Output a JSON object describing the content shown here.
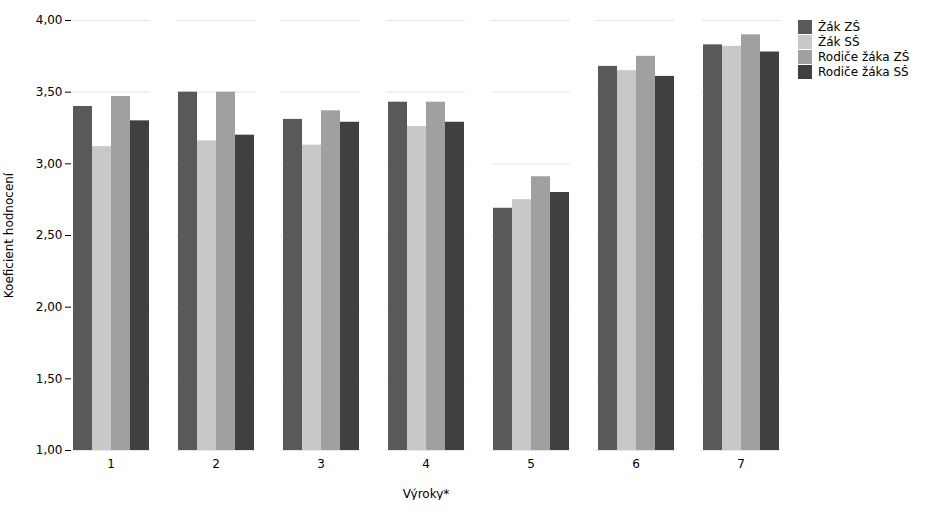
{
  "chart_data": {
    "type": "bar",
    "xlabel": "Výroky*",
    "ylabel": "Koeficient hodnocení",
    "categories": [
      "1",
      "2",
      "3",
      "4",
      "5",
      "6",
      "7"
    ],
    "series": [
      {
        "name": "Žák ZŠ",
        "color": "#595959",
        "values": [
          3.4,
          3.5,
          3.31,
          3.43,
          2.69,
          3.68,
          3.83
        ]
      },
      {
        "name": "Žák SŠ",
        "color": "#c8c8c8",
        "values": [
          3.12,
          3.16,
          3.13,
          3.26,
          2.75,
          3.65,
          3.82
        ]
      },
      {
        "name": "Rodiče žáka ZŠ",
        "color": "#a0a0a0",
        "values": [
          3.47,
          3.5,
          3.37,
          3.43,
          2.91,
          3.75,
          3.9
        ]
      },
      {
        "name": "Rodiče žáka SŠ",
        "color": "#404040",
        "values": [
          3.3,
          3.2,
          3.29,
          3.29,
          2.8,
          3.61,
          3.78
        ]
      }
    ],
    "ylim": [
      1.0,
      4.0
    ],
    "yticks": [
      {
        "value": 1.0,
        "label": "1,00"
      },
      {
        "value": 1.5,
        "label": "1,50"
      },
      {
        "value": 2.0,
        "label": "2,00"
      },
      {
        "value": 2.5,
        "label": "2,50"
      },
      {
        "value": 3.0,
        "label": "3,00"
      },
      {
        "value": 3.5,
        "label": "3,50"
      },
      {
        "value": 4.0,
        "label": "4,00"
      }
    ],
    "grid": true,
    "legend": "right"
  }
}
